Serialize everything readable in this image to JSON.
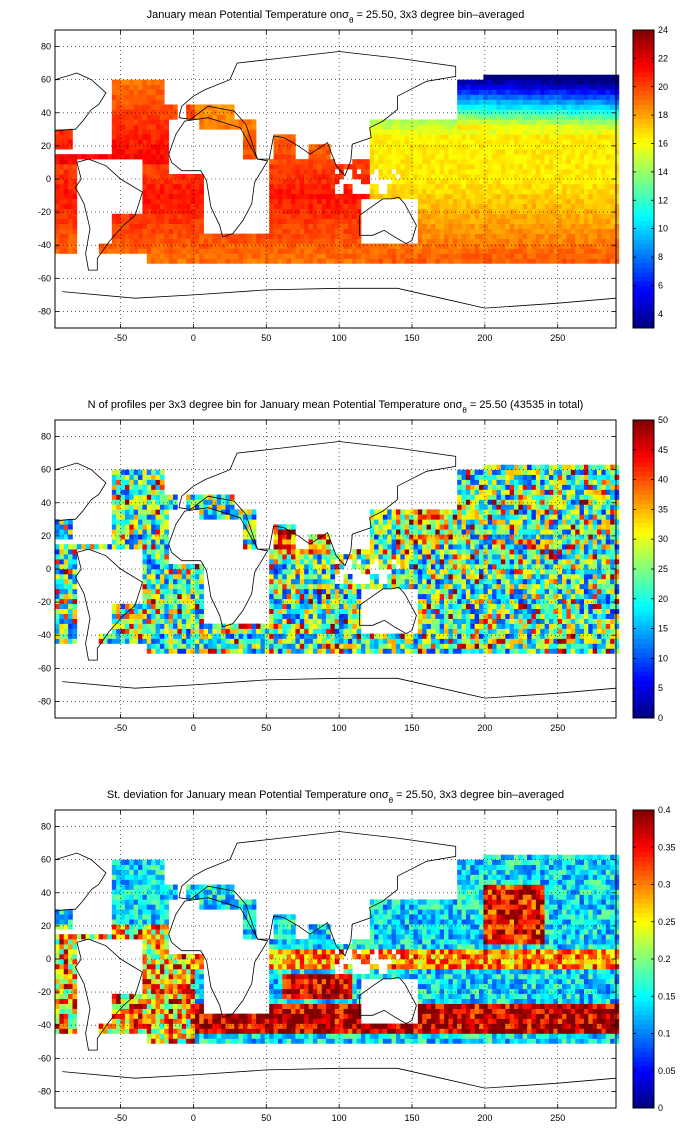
{
  "colors": {
    "background": "#ffffff",
    "axis": "#000000",
    "colormap": "jet"
  },
  "chart_data": [
    {
      "type": "heatmap",
      "title": "January mean Potential Temperature on σθ = 25.50, 3x3 degree bin–averaged",
      "title_parts": [
        "January mean Potential Temperature on",
        "σ",
        "θ",
        " = 25.50, 3x3 degree bin–averaged"
      ],
      "xlim": [
        -95,
        290
      ],
      "ylim": [
        -90,
        90
      ],
      "x_ticks": [
        -50,
        0,
        50,
        100,
        150,
        200,
        250
      ],
      "y_ticks": [
        80,
        60,
        40,
        20,
        0,
        -20,
        -40,
        -60,
        -80
      ],
      "grid": true,
      "colorbar": {
        "min": 3,
        "max": 24,
        "ticks": [
          24,
          22,
          20,
          18,
          16,
          14,
          12,
          10,
          8,
          6,
          4
        ]
      },
      "bin_size_deg": 3,
      "field": "temperature"
    },
    {
      "type": "heatmap",
      "title": "N of profiles per 3x3 degree bin for January mean Potential Temperature on σθ = 25.50 (43535 in total)",
      "title_parts": [
        "N of profiles per 3x3 degree bin for January mean Potential Temperature on",
        "σ",
        "θ",
        " = 25.50 (43535 in total)"
      ],
      "xlim": [
        -95,
        290
      ],
      "ylim": [
        -90,
        90
      ],
      "x_ticks": [
        -50,
        0,
        50,
        100,
        150,
        200,
        250
      ],
      "y_ticks": [
        80,
        60,
        40,
        20,
        0,
        -20,
        -40,
        -60,
        -80
      ],
      "grid": true,
      "colorbar": {
        "min": 0,
        "max": 50,
        "ticks": [
          50,
          45,
          40,
          35,
          30,
          25,
          20,
          15,
          10,
          5,
          0
        ]
      },
      "bin_size_deg": 3,
      "field": "count"
    },
    {
      "type": "heatmap",
      "title": "St. deviation for January mean Potential Temperature on σθ = 25.50, 3x3 degree bin–averaged",
      "title_parts": [
        "St. deviation for January mean Potential Temperature on",
        "σ",
        "θ",
        " = 25.50, 3x3 degree bin–averaged"
      ],
      "xlim": [
        -95,
        290
      ],
      "ylim": [
        -90,
        90
      ],
      "x_ticks": [
        -50,
        0,
        50,
        100,
        150,
        200,
        250
      ],
      "y_ticks": [
        80,
        60,
        40,
        20,
        0,
        -20,
        -40,
        -60,
        -80
      ],
      "grid": true,
      "colorbar": {
        "min": 0,
        "max": 0.4,
        "ticks": [
          0.4,
          0.35,
          0.3,
          0.25,
          0.2,
          0.15,
          0.1,
          0.05,
          0
        ]
      },
      "bin_size_deg": 3,
      "field": "stdev"
    }
  ]
}
